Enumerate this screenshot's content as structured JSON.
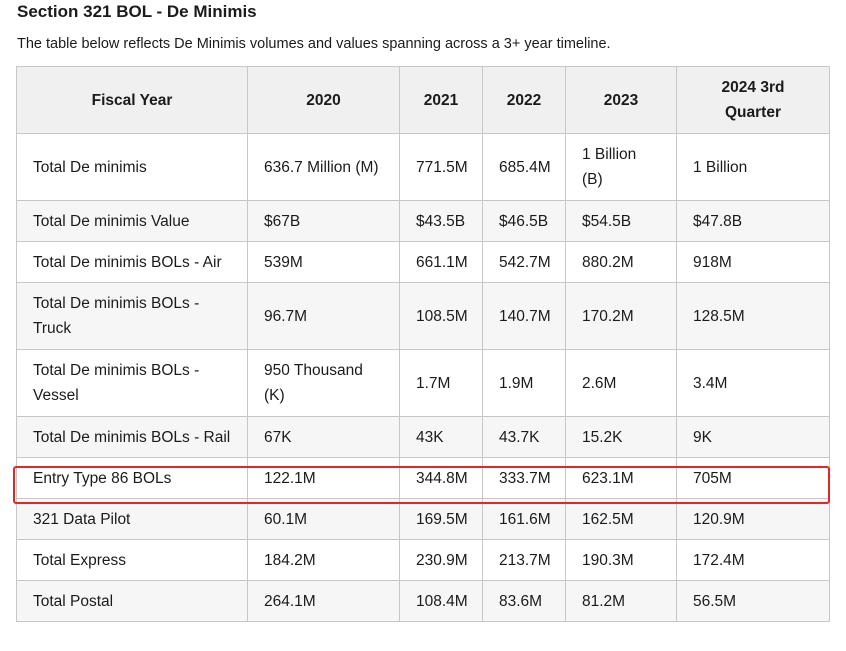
{
  "page": {
    "title": "Section 321 BOL - De Minimis",
    "subtitle": "The table below reflects De Minimis volumes and values spanning across a 3+ year timeline."
  },
  "table": {
    "headers": [
      "Fiscal Year",
      "2020",
      "2021",
      "2022",
      "2023",
      "2024 3rd Quarter"
    ],
    "rows": [
      [
        "Total De minimis",
        "636.7 Million (M)",
        "771.5M",
        "685.4M",
        "1 Billion (B)",
        "1 Billion"
      ],
      [
        "Total De minimis Value",
        "$67B",
        "$43.5B",
        "$46.5B",
        "$54.5B",
        "$47.8B"
      ],
      [
        "Total De minimis BOLs - Air",
        "539M",
        "661.1M",
        "542.7M",
        "880.2M",
        "918M"
      ],
      [
        "Total De minimis BOLs - Truck",
        "96.7M",
        "108.5M",
        "140.7M",
        "170.2M",
        "128.5M"
      ],
      [
        "Total De minimis BOLs - Vessel",
        "950 Thousand (K)",
        "1.7M",
        "1.9M",
        "2.6M",
        "3.4M"
      ],
      [
        "Total De minimis BOLs - Rail",
        "67K",
        "43K",
        "43.7K",
        "15.2K",
        "9K"
      ],
      [
        "Entry Type 86 BOLs",
        "122.1M",
        "344.8M",
        "333.7M",
        "623.1M",
        "705M"
      ],
      [
        "321 Data Pilot",
        "60.1M",
        "169.5M",
        "161.6M",
        "162.5M",
        "120.9M"
      ],
      [
        "Total Express",
        "184.2M",
        "230.9M",
        "213.7M",
        "190.3M",
        "172.4M"
      ],
      [
        "Total Postal",
        "264.1M",
        "108.4M",
        "83.6M",
        "81.2M",
        "56.5M"
      ]
    ]
  },
  "highlight": {
    "row_label": "Entry Type 86 BOLs",
    "color": "#e32727"
  }
}
